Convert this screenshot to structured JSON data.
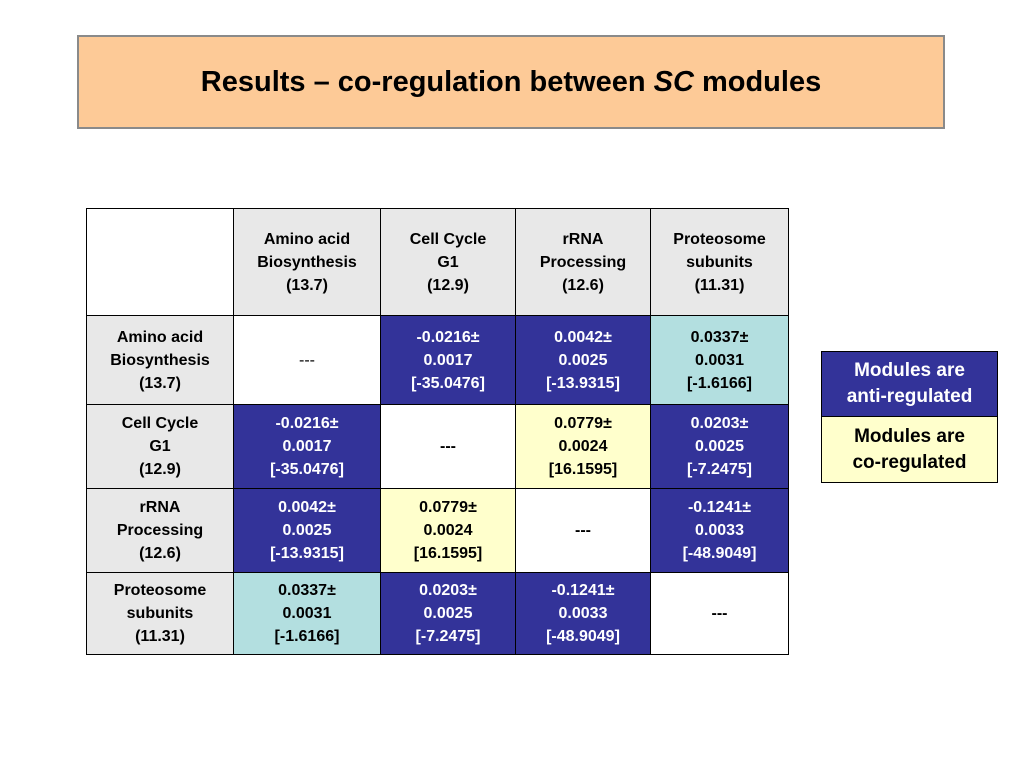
{
  "title": {
    "prefix": "Results – co-regulation between ",
    "italic": "SC",
    "suffix": " modules"
  },
  "columns": [
    {
      "lines": [
        "Amino acid",
        "Biosynthesis",
        "(13.7)"
      ]
    },
    {
      "lines": [
        "Cell Cycle",
        "G1",
        "(12.9)"
      ]
    },
    {
      "lines": [
        "rRNA",
        "Processing",
        "(12.6)"
      ]
    },
    {
      "lines": [
        "Proteosome",
        "subunits",
        "(11.31)"
      ]
    }
  ],
  "rows": [
    {
      "header": [
        "Amino acid",
        "Biosynthesis",
        "(13.7)"
      ],
      "cells": [
        {
          "lines": [
            "---"
          ]
        },
        {
          "lines": [
            "-0.0216±",
            "0.0017",
            "[-35.0476]"
          ]
        },
        {
          "lines": [
            "0.0042±",
            "0.0025",
            "[-13.9315]"
          ]
        },
        {
          "lines": [
            "0.0337±",
            "0.0031",
            "[-1.6166]"
          ]
        }
      ]
    },
    {
      "header": [
        "Cell Cycle",
        "G1",
        "(12.9)"
      ],
      "cells": [
        {
          "lines": [
            "-0.0216±",
            "0.0017",
            "[-35.0476]"
          ]
        },
        {
          "lines": [
            "---"
          ]
        },
        {
          "lines": [
            "0.0779±",
            "0.0024",
            "[16.1595]"
          ]
        },
        {
          "lines": [
            "0.0203±",
            "0.0025",
            "[-7.2475]"
          ]
        }
      ]
    },
    {
      "header": [
        "rRNA",
        "Processing",
        "(12.6)"
      ],
      "cells": [
        {
          "lines": [
            "0.0042±",
            "0.0025",
            "[-13.9315]"
          ]
        },
        {
          "lines": [
            "0.0779±",
            "0.0024",
            "[16.1595]"
          ]
        },
        {
          "lines": [
            "---"
          ]
        },
        {
          "lines": [
            "-0.1241±",
            "0.0033",
            "[-48.9049]"
          ]
        }
      ]
    },
    {
      "header": [
        "Proteosome",
        "subunits",
        "(11.31)"
      ],
      "cells": [
        {
          "lines": [
            "0.0337±",
            "0.0031",
            "[-1.6166]"
          ]
        },
        {
          "lines": [
            "0.0203±",
            "0.0025",
            "[-7.2475]"
          ]
        },
        {
          "lines": [
            "-0.1241±",
            "0.0033",
            "[-48.9049]"
          ]
        },
        {
          "lines": [
            "---"
          ]
        }
      ]
    }
  ],
  "legend": {
    "anti": [
      "Modules are",
      "anti-regulated"
    ],
    "co": [
      "Modules are",
      "co-regulated"
    ]
  },
  "colors": {
    "title_bg": "#fdca97",
    "header_bg": "#e8e8e8",
    "anti_regulated": "#333399",
    "co_regulated": "#ffffcc",
    "weak": "#b3dfe0"
  }
}
